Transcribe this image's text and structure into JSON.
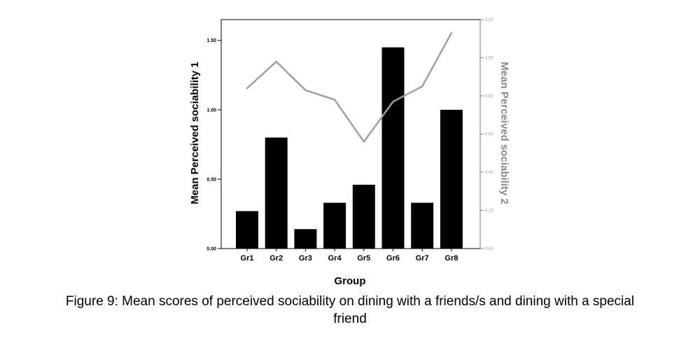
{
  "chart_data": {
    "type": "bar",
    "categories": [
      "Gr1",
      "Gr2",
      "Gr3",
      "Gr4",
      "Gr5",
      "Gr6",
      "Gr7",
      "Gr8"
    ],
    "series": [
      {
        "axis": "left",
        "type": "bar",
        "color": "#000000",
        "values": [
          0.27,
          0.8,
          0.14,
          0.33,
          0.46,
          1.45,
          0.33,
          1.0
        ]
      },
      {
        "axis": "right",
        "type": "line",
        "color": "#a0a0a0",
        "values": [
          0.84,
          0.98,
          0.83,
          0.78,
          0.56,
          0.77,
          0.85,
          1.13
        ]
      }
    ],
    "xlabel": "Group",
    "ylabel": "Mean Perceived sociability 1",
    "ylabel2": "Mean Perceived sociability 2",
    "ylim": [
      0,
      1.65
    ],
    "ylim2": [
      0,
      1.2
    ],
    "yticks": [
      "0.00",
      "0.50",
      "1.00",
      "1.50"
    ],
    "yticks2": [
      "0.00",
      "0.20",
      "0.40",
      "0.60",
      "0.80",
      "1.00",
      "1.20"
    ],
    "grid": false,
    "caption_line1": "Figure 9: Mean scores of perceived sociability on dining with a friends/s and dining with a special",
    "caption_line2": "friend"
  }
}
